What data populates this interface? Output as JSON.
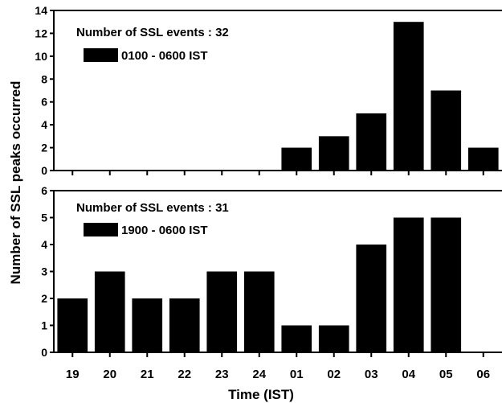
{
  "chart_data": [
    {
      "type": "bar",
      "panel": "top",
      "title": "Number of SSL events : 32",
      "categories": [
        "19",
        "20",
        "21",
        "22",
        "23",
        "24",
        "01",
        "02",
        "03",
        "04",
        "05",
        "06"
      ],
      "series": [
        {
          "name": "0100 - 0600 IST",
          "values": [
            0,
            0,
            0,
            0,
            0,
            0,
            2,
            3,
            5,
            13,
            7,
            2
          ]
        }
      ],
      "ylim": [
        0,
        14
      ],
      "yticks": [
        "0",
        "2",
        "4",
        "6",
        "8",
        "10",
        "12",
        "14"
      ],
      "legend": "top-left",
      "grid": false
    },
    {
      "type": "bar",
      "panel": "bottom",
      "title": "Number of SSL events : 31",
      "categories": [
        "19",
        "20",
        "21",
        "22",
        "23",
        "24",
        "01",
        "02",
        "03",
        "04",
        "05",
        "06"
      ],
      "series": [
        {
          "name": "1900 - 0600 IST",
          "values": [
            2,
            3,
            2,
            2,
            3,
            3,
            1,
            1,
            4,
            5,
            5,
            0
          ]
        }
      ],
      "ylim": [
        0,
        6
      ],
      "yticks": [
        "0",
        "1",
        "2",
        "3",
        "4",
        "5",
        "6"
      ],
      "legend": "top-left",
      "grid": false
    }
  ],
  "xlabel": "Time (IST)",
  "ylabel": "Number of SSL peaks occurred",
  "colors": {
    "bar": "#000000",
    "axis": "#000000"
  }
}
